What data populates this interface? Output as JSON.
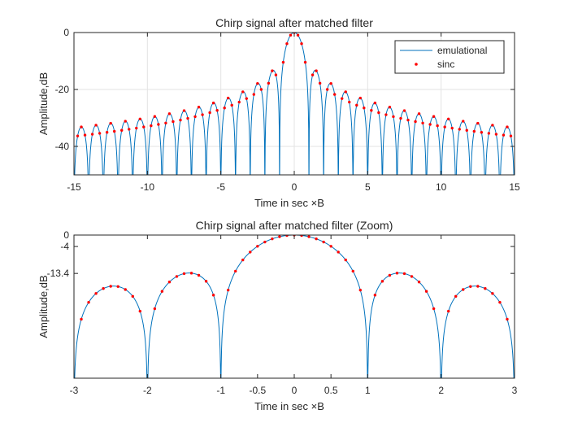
{
  "chart_data": [
    {
      "type": "line",
      "title": "Chirp signal after matched filter",
      "xlabel": "Time in sec ×B",
      "ylabel": "Amplitude,dB",
      "xlim": [
        -15,
        15
      ],
      "ylim": [
        -50,
        0
      ],
      "xticks": [
        -15,
        -10,
        -5,
        0,
        5,
        10,
        15
      ],
      "yticks": [
        0,
        -20,
        -40
      ],
      "xtick_labels": [
        "-15",
        "-10",
        "-5",
        "0",
        "5",
        "10",
        "15"
      ],
      "ytick_labels": [
        "0",
        "-20",
        "-40"
      ],
      "grid": true,
      "legend": {
        "placement": "top-right",
        "entries": [
          "emulational",
          "sinc"
        ]
      },
      "series": [
        {
          "name": "emulational",
          "style": "line",
          "color": "#0072BD",
          "function": "20*log10(|sinc(x)|), floored at -50 dB",
          "x_range": [
            -15,
            15
          ]
        },
        {
          "name": "sinc",
          "style": "dots",
          "color": "#FF0000",
          "function": "20*log10(|sinc(x)|), sampled every 0.25",
          "x_range": [
            -15,
            15
          ]
        }
      ]
    },
    {
      "type": "line",
      "title": "Chirp signal after matched filter (Zoom)",
      "xlabel": "Time in sec ×B",
      "ylabel": "Amplitude,dB",
      "xlim": [
        -3,
        3
      ],
      "ylim": [
        -50,
        0
      ],
      "xticks": [
        -3,
        -2,
        -1,
        -0.5,
        0,
        0.5,
        1,
        2,
        3
      ],
      "yticks": [
        0,
        -4,
        -13.4
      ],
      "xtick_labels": [
        "-3",
        "-2",
        "-1",
        "-0.5",
        "0",
        "0.5",
        "1",
        "2",
        "3"
      ],
      "ytick_labels": [
        "0",
        "-4",
        "-13.4"
      ],
      "grid": false,
      "series": [
        {
          "name": "emulational",
          "style": "line",
          "color": "#0072BD",
          "function": "20*log10(|sinc(x)|)",
          "x_range": [
            -3,
            3
          ]
        },
        {
          "name": "sinc",
          "style": "dots",
          "color": "#FF0000",
          "function": "20*log10(|sinc(x)|), sampled every 0.1",
          "x_range": [
            -3,
            3
          ]
        }
      ]
    }
  ]
}
